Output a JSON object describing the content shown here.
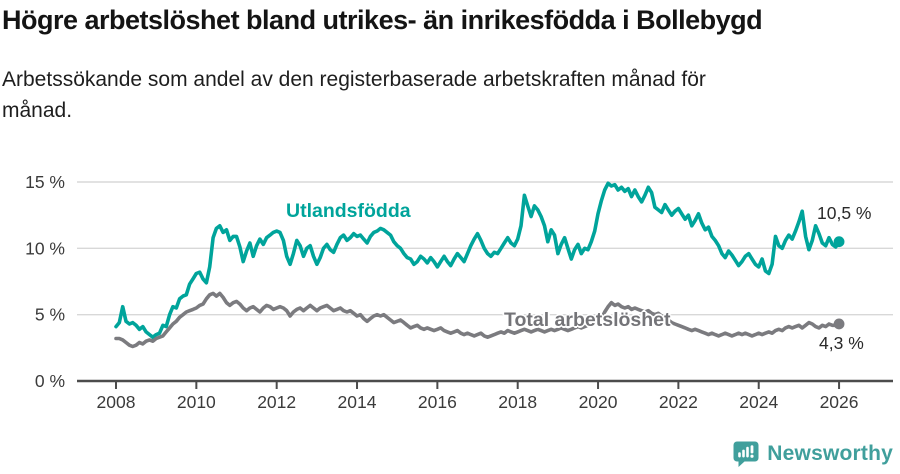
{
  "header": {
    "title": "Högre arbetslöshet bland utrikes- än inrikesfödda i Bollebygd",
    "subtitle_line1": "Arbetssökande som andel av den registerbaserade arbetskraften månad för",
    "subtitle_line2": "månad."
  },
  "colors": {
    "foreign_born_line": "#00a49b",
    "total_line": "#7b7b7f",
    "gridline": "#d8d8d8",
    "axis": "#4c4c4c",
    "tick_text": "#3b3b3b",
    "brand_teal": "#409f9c"
  },
  "footer": {
    "brand": "Newsworthy",
    "logo_icon": "bar-chart-speech-bubble-icon"
  },
  "chart_data": {
    "type": "line",
    "title": "Högre arbetslöshet bland utrikes- än inrikesfödda i Bollebygd",
    "subtitle": "Arbetssökande som andel av den registerbaserade arbetskraften månad för månad.",
    "xlabel": "",
    "ylabel": "",
    "ylim": [
      0,
      15
    ],
    "grid": true,
    "legend_position": "labels-on-lines",
    "x_start_year": 2008,
    "points_per_year": 12,
    "y_ticks": [
      {
        "value": 0,
        "label": "0 %"
      },
      {
        "value": 5,
        "label": "5 %"
      },
      {
        "value": 10,
        "label": "10 %"
      },
      {
        "value": 15,
        "label": "15 %"
      }
    ],
    "x_ticks": [
      {
        "value": 2008,
        "label": "2008"
      },
      {
        "value": 2010,
        "label": "2010"
      },
      {
        "value": 2012,
        "label": "2012"
      },
      {
        "value": 2014,
        "label": "2014"
      },
      {
        "value": 2016,
        "label": "2016"
      },
      {
        "value": 2018,
        "label": "2018"
      },
      {
        "value": 2020,
        "label": "2020"
      },
      {
        "value": 2022,
        "label": "2022"
      },
      {
        "value": 2024,
        "label": "2024"
      },
      {
        "value": 2026,
        "label": "2026"
      }
    ],
    "series": [
      {
        "name": "Utlandsfödda",
        "color": "#00a49b",
        "end_label": "10,5 %",
        "final_value": 10.5,
        "values": [
          4.1,
          4.4,
          5.6,
          4.5,
          4.3,
          4.4,
          4.2,
          3.9,
          4.1,
          3.7,
          3.5,
          3.3,
          3.5,
          3.6,
          4.2,
          4.1,
          5.0,
          5.6,
          5.5,
          6.2,
          6.4,
          6.5,
          7.3,
          7.7,
          8.1,
          8.2,
          7.7,
          7.4,
          8.6,
          10.8,
          11.5,
          11.7,
          11.2,
          11.4,
          10.6,
          10.9,
          10.9,
          10.1,
          9.0,
          9.8,
          10.4,
          9.4,
          10.2,
          10.7,
          10.3,
          10.8,
          11.0,
          11.2,
          11.3,
          11.2,
          10.6,
          9.4,
          8.8,
          9.6,
          10.6,
          10.2,
          9.4,
          10.0,
          10.2,
          9.4,
          8.8,
          9.3,
          10.0,
          10.3,
          9.9,
          9.7,
          10.3,
          10.8,
          11.0,
          10.6,
          10.8,
          11.1,
          10.9,
          11.0,
          10.7,
          10.4,
          10.9,
          11.2,
          11.3,
          11.5,
          11.4,
          11.2,
          11.0,
          10.5,
          10.2,
          10.0,
          9.6,
          9.3,
          9.2,
          8.8,
          9.0,
          9.4,
          9.2,
          8.9,
          9.3,
          9.0,
          8.6,
          9.0,
          9.4,
          9.0,
          8.7,
          9.2,
          9.6,
          9.3,
          9.0,
          9.6,
          10.2,
          10.7,
          11.1,
          10.6,
          10.0,
          9.6,
          9.4,
          9.7,
          9.6,
          10.0,
          10.4,
          10.8,
          10.4,
          10.2,
          10.7,
          11.7,
          14.0,
          13.2,
          12.4,
          13.2,
          12.9,
          12.4,
          11.7,
          10.5,
          11.4,
          11.0,
          9.6,
          10.3,
          10.8,
          10.0,
          9.2,
          9.9,
          10.3,
          9.6,
          10.0,
          9.9,
          10.5,
          11.3,
          12.6,
          13.6,
          14.4,
          14.9,
          14.7,
          14.8,
          14.4,
          14.6,
          14.3,
          14.5,
          13.9,
          14.4,
          13.9,
          13.5,
          14.0,
          14.6,
          14.2,
          13.1,
          12.9,
          12.7,
          13.3,
          12.9,
          12.5,
          12.8,
          13.0,
          12.6,
          12.2,
          12.5,
          11.7,
          12.1,
          12.6,
          11.9,
          11.4,
          11.6,
          10.9,
          10.6,
          10.2,
          9.6,
          9.3,
          9.8,
          9.5,
          9.1,
          8.7,
          9.0,
          9.4,
          9.6,
          9.2,
          8.8,
          8.6,
          9.2,
          8.3,
          8.1,
          8.8,
          10.9,
          10.2,
          10.0,
          10.6,
          11.0,
          10.7,
          11.3,
          12.0,
          12.8,
          10.9,
          9.9,
          10.6,
          11.7,
          11.1,
          10.4,
          10.2,
          10.8,
          10.3,
          10.1,
          10.5
        ]
      },
      {
        "name": "Total arbetslöshet",
        "color": "#7b7b7f",
        "end_label": "4,3 %",
        "final_value": 4.3,
        "values": [
          3.2,
          3.2,
          3.1,
          2.9,
          2.7,
          2.6,
          2.7,
          2.9,
          2.8,
          3.0,
          3.1,
          3.0,
          3.2,
          3.3,
          3.4,
          3.7,
          4.0,
          4.3,
          4.5,
          4.8,
          5.0,
          5.2,
          5.3,
          5.4,
          5.5,
          5.7,
          5.8,
          6.2,
          6.5,
          6.6,
          6.4,
          6.6,
          6.3,
          5.9,
          5.7,
          5.9,
          6.0,
          5.8,
          5.5,
          5.3,
          5.5,
          5.6,
          5.4,
          5.2,
          5.5,
          5.7,
          5.6,
          5.4,
          5.5,
          5.6,
          5.5,
          5.3,
          4.9,
          5.2,
          5.4,
          5.5,
          5.3,
          5.5,
          5.7,
          5.5,
          5.3,
          5.5,
          5.6,
          5.7,
          5.5,
          5.3,
          5.4,
          5.5,
          5.3,
          5.2,
          5.3,
          5.1,
          4.9,
          5.0,
          4.7,
          4.5,
          4.7,
          4.9,
          5.0,
          4.9,
          5.0,
          4.8,
          4.6,
          4.4,
          4.5,
          4.6,
          4.4,
          4.2,
          4.0,
          4.1,
          4.2,
          4.0,
          3.9,
          4.0,
          3.9,
          3.8,
          3.9,
          4.0,
          3.8,
          3.7,
          3.6,
          3.7,
          3.8,
          3.6,
          3.5,
          3.6,
          3.5,
          3.4,
          3.5,
          3.6,
          3.4,
          3.3,
          3.4,
          3.5,
          3.6,
          3.7,
          3.6,
          3.8,
          3.7,
          3.6,
          3.7,
          3.8,
          3.9,
          3.8,
          3.7,
          3.8,
          3.9,
          3.8,
          3.7,
          3.8,
          3.9,
          3.8,
          3.9,
          4.0,
          3.9,
          3.8,
          3.9,
          4.0,
          4.1,
          4.0,
          4.1,
          4.2,
          4.3,
          4.4,
          4.5,
          4.7,
          5.2,
          5.6,
          5.9,
          5.7,
          5.8,
          5.6,
          5.5,
          5.6,
          5.4,
          5.5,
          5.4,
          5.3,
          5.2,
          5.3,
          5.1,
          5.0,
          5.1,
          4.9,
          4.7,
          4.6,
          4.4,
          4.3,
          4.2,
          4.1,
          4.0,
          3.9,
          3.8,
          3.9,
          3.8,
          3.7,
          3.6,
          3.5,
          3.6,
          3.5,
          3.4,
          3.5,
          3.6,
          3.5,
          3.4,
          3.5,
          3.6,
          3.5,
          3.6,
          3.5,
          3.4,
          3.5,
          3.6,
          3.5,
          3.6,
          3.7,
          3.6,
          3.8,
          3.9,
          3.8,
          4.0,
          4.1,
          4.0,
          4.1,
          4.2,
          4.0,
          4.2,
          4.4,
          4.3,
          4.1,
          4.0,
          4.2,
          4.1,
          4.3,
          4.2,
          4.2,
          4.3
        ]
      }
    ]
  }
}
